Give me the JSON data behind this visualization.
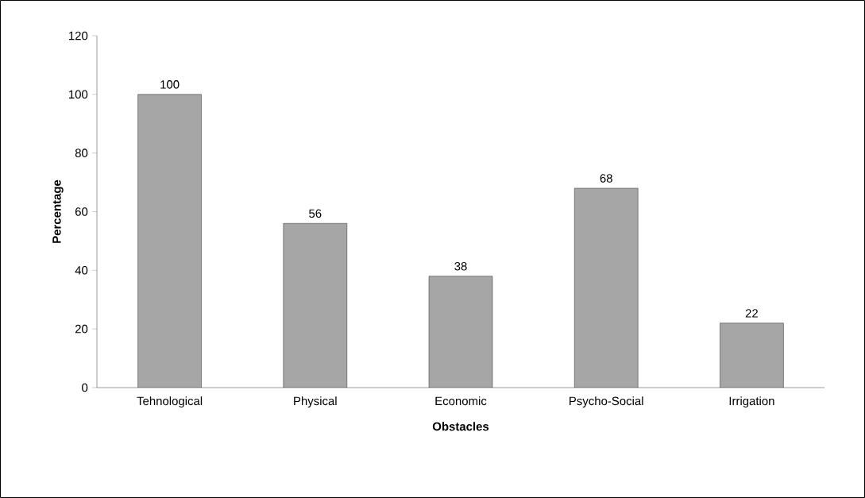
{
  "chart_data": {
    "type": "bar",
    "xlabel": "Obstacles",
    "ylabel": "Percentage",
    "categories": [
      "Tehnological",
      "Physical",
      "Economic",
      "Psycho-Social",
      "Irrigation"
    ],
    "values": [
      100,
      56,
      38,
      68,
      22
    ],
    "color": "#a6a6a6",
    "ylim": [
      0,
      120
    ],
    "yticks": [
      0,
      20,
      40,
      60,
      80,
      100,
      120
    ],
    "data_labels": true,
    "grid": false
  }
}
